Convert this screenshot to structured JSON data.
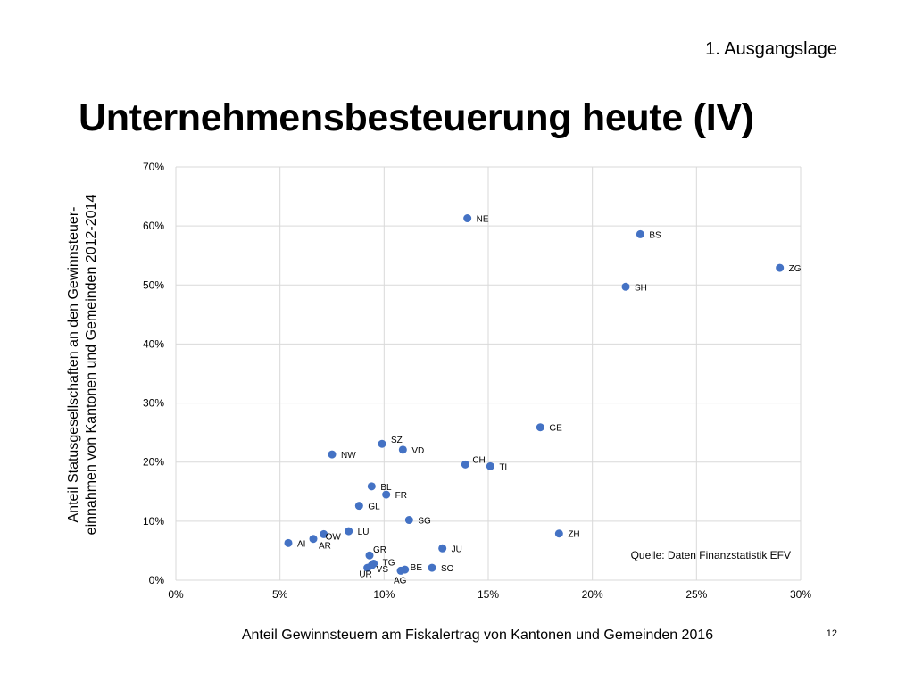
{
  "header": {
    "section": "1. Ausgangslage",
    "title": "Unternehmensbesteuerung heute (IV)"
  },
  "footer": {
    "page_number": "12"
  },
  "chart_data": {
    "type": "scatter",
    "title": "",
    "xlabel": "Anteil Gewinnsteuern am Fiskalertrag von Kantonen und Gemeinden 2016",
    "ylabel_lines": [
      "Anteil Statusgesellschaften an den Gewinnsteuer-",
      "einnahmen von Kantonen und Gemeinden 2012-2014"
    ],
    "xlim": [
      0,
      30
    ],
    "ylim": [
      0,
      70
    ],
    "x_ticks": [
      0,
      5,
      10,
      15,
      20,
      25,
      30
    ],
    "x_tick_labels": [
      "0%",
      "5%",
      "10%",
      "15%",
      "20%",
      "25%",
      "30%"
    ],
    "y_ticks": [
      0,
      10,
      20,
      30,
      40,
      50,
      60,
      70
    ],
    "y_tick_labels": [
      "0%",
      "10%",
      "20%",
      "30%",
      "40%",
      "50%",
      "60%",
      "70%"
    ],
    "grid": true,
    "marker_color": "#4472C4",
    "annotation": "Quelle: Daten Finanzstatistik EFV",
    "points": [
      {
        "label": "NE",
        "x": 14.0,
        "y": 61.3
      },
      {
        "label": "BS",
        "x": 22.3,
        "y": 58.6
      },
      {
        "label": "ZG",
        "x": 29.0,
        "y": 52.9
      },
      {
        "label": "SH",
        "x": 21.6,
        "y": 49.7
      },
      {
        "label": "GE",
        "x": 17.5,
        "y": 25.9
      },
      {
        "label": "SZ",
        "x": 9.9,
        "y": 23.1
      },
      {
        "label": "VD",
        "x": 10.9,
        "y": 22.1
      },
      {
        "label": "NW",
        "x": 7.5,
        "y": 21.3
      },
      {
        "label": "CH",
        "x": 13.9,
        "y": 19.6
      },
      {
        "label": "TI",
        "x": 15.1,
        "y": 19.3
      },
      {
        "label": "BL",
        "x": 9.4,
        "y": 15.9
      },
      {
        "label": "FR",
        "x": 10.1,
        "y": 14.5
      },
      {
        "label": "GL",
        "x": 8.8,
        "y": 12.6
      },
      {
        "label": "SG",
        "x": 11.2,
        "y": 10.2
      },
      {
        "label": "LU",
        "x": 8.3,
        "y": 8.3
      },
      {
        "label": "ZH",
        "x": 18.4,
        "y": 7.9
      },
      {
        "label": "OW",
        "x": 7.1,
        "y": 7.8
      },
      {
        "label": "AR",
        "x": 6.6,
        "y": 7.0
      },
      {
        "label": "AI",
        "x": 5.4,
        "y": 6.3
      },
      {
        "label": "JU",
        "x": 12.8,
        "y": 5.4
      },
      {
        "label": "GR",
        "x": 9.3,
        "y": 4.2
      },
      {
        "label": "TG",
        "x": 9.5,
        "y": 2.8
      },
      {
        "label": "VS",
        "x": 9.2,
        "y": 2.1
      },
      {
        "label": "UR",
        "x": 9.4,
        "y": 2.5
      },
      {
        "label": "AG",
        "x": 10.8,
        "y": 1.6
      },
      {
        "label": "BE",
        "x": 11.0,
        "y": 1.8
      },
      {
        "label": "SO",
        "x": 12.3,
        "y": 2.1
      }
    ]
  }
}
